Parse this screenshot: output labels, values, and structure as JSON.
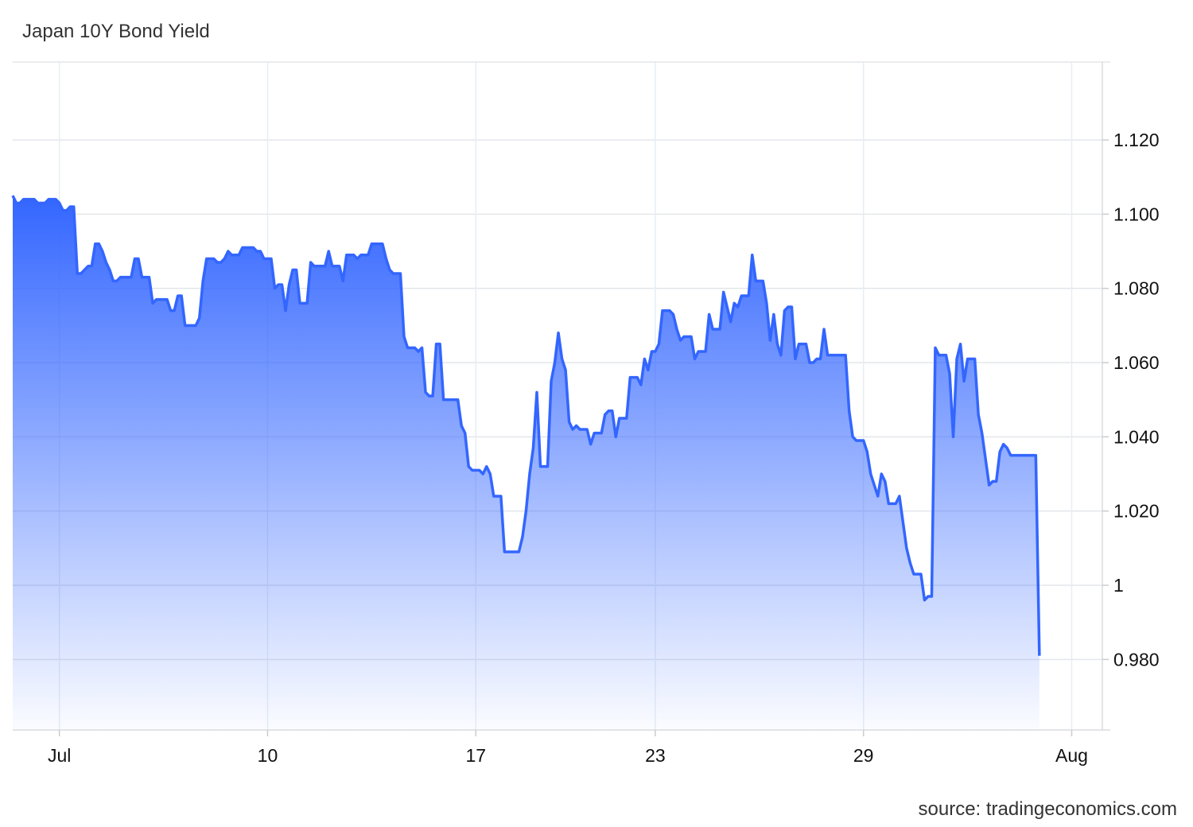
{
  "chart_data": {
    "type": "area",
    "title": "Japan 10Y Bond Yield",
    "source": "source: tradingeconomics.com",
    "line_color": "#3366ff",
    "fill_top_color": "#3366ff",
    "grid": true,
    "ylim": [
      0.961,
      1.141
    ],
    "y_ticks": [
      {
        "value": 1.12,
        "label": "1.120"
      },
      {
        "value": 1.1,
        "label": "1.100"
      },
      {
        "value": 1.08,
        "label": "1.080"
      },
      {
        "value": 1.06,
        "label": "1.060"
      },
      {
        "value": 1.04,
        "label": "1.040"
      },
      {
        "value": 1.02,
        "label": "1.020"
      },
      {
        "value": 1.0,
        "label": "1"
      },
      {
        "value": 0.98,
        "label": "0.980"
      }
    ],
    "x_ticks": [
      {
        "index": 13,
        "label": "Jul"
      },
      {
        "index": 71,
        "label": "10"
      },
      {
        "index": 129,
        "label": "17"
      },
      {
        "index": 179,
        "label": "23"
      },
      {
        "index": 237,
        "label": "29"
      },
      {
        "index": 295,
        "label": "Aug"
      }
    ],
    "x_count": 297,
    "values": [
      1.105,
      1.103,
      1.103,
      1.104,
      1.104,
      1.104,
      1.104,
      1.103,
      1.103,
      1.103,
      1.104,
      1.104,
      1.104,
      1.103,
      1.101,
      1.101,
      1.102,
      1.102,
      1.084,
      1.084,
      1.085,
      1.086,
      1.086,
      1.092,
      1.092,
      1.09,
      1.087,
      1.085,
      1.082,
      1.082,
      1.083,
      1.083,
      1.083,
      1.083,
      1.088,
      1.088,
      1.083,
      1.083,
      1.083,
      1.076,
      1.077,
      1.077,
      1.077,
      1.077,
      1.074,
      1.074,
      1.078,
      1.078,
      1.07,
      1.07,
      1.07,
      1.07,
      1.072,
      1.082,
      1.088,
      1.088,
      1.088,
      1.087,
      1.087,
      1.088,
      1.09,
      1.089,
      1.089,
      1.089,
      1.091,
      1.091,
      1.091,
      1.091,
      1.09,
      1.09,
      1.088,
      1.088,
      1.088,
      1.08,
      1.081,
      1.081,
      1.074,
      1.081,
      1.085,
      1.085,
      1.076,
      1.076,
      1.076,
      1.087,
      1.086,
      1.086,
      1.086,
      1.086,
      1.09,
      1.086,
      1.086,
      1.086,
      1.082,
      1.089,
      1.089,
      1.089,
      1.088,
      1.089,
      1.089,
      1.089,
      1.092,
      1.092,
      1.092,
      1.092,
      1.088,
      1.085,
      1.084,
      1.084,
      1.084,
      1.067,
      1.064,
      1.064,
      1.064,
      1.063,
      1.064,
      1.052,
      1.051,
      1.051,
      1.065,
      1.065,
      1.05,
      1.05,
      1.05,
      1.05,
      1.05,
      1.043,
      1.041,
      1.032,
      1.031,
      1.031,
      1.031,
      1.03,
      1.032,
      1.03,
      1.024,
      1.024,
      1.024,
      1.009,
      1.009,
      1.009,
      1.009,
      1.009,
      1.013,
      1.02,
      1.03,
      1.037,
      1.052,
      1.032,
      1.032,
      1.032,
      1.055,
      1.06,
      1.068,
      1.061,
      1.058,
      1.044,
      1.042,
      1.043,
      1.042,
      1.042,
      1.042,
      1.038,
      1.041,
      1.041,
      1.041,
      1.046,
      1.047,
      1.047,
      1.04,
      1.045,
      1.045,
      1.045,
      1.056,
      1.056,
      1.056,
      1.054,
      1.061,
      1.058,
      1.063,
      1.063,
      1.065,
      1.074,
      1.074,
      1.074,
      1.073,
      1.069,
      1.066,
      1.067,
      1.067,
      1.067,
      1.061,
      1.063,
      1.063,
      1.063,
      1.073,
      1.069,
      1.069,
      1.069,
      1.079,
      1.075,
      1.071,
      1.076,
      1.075,
      1.078,
      1.078,
      1.078,
      1.089,
      1.082,
      1.082,
      1.082,
      1.076,
      1.066,
      1.073,
      1.065,
      1.062,
      1.074,
      1.075,
      1.075,
      1.061,
      1.065,
      1.065,
      1.065,
      1.06,
      1.06,
      1.061,
      1.061,
      1.069,
      1.062,
      1.062,
      1.062,
      1.062,
      1.062,
      1.062,
      1.047,
      1.04,
      1.039,
      1.039,
      1.039,
      1.036,
      1.03,
      1.027,
      1.024,
      1.03,
      1.028,
      1.022,
      1.022,
      1.022,
      1.024,
      1.017,
      1.01,
      1.006,
      1.003,
      1.003,
      1.003,
      0.996,
      0.997,
      0.997,
      1.064,
      1.062,
      1.062,
      1.062,
      1.057,
      1.04,
      1.061,
      1.065,
      1.055,
      1.061,
      1.061,
      1.061,
      1.046,
      1.041,
      1.034,
      1.027,
      1.028,
      1.028,
      1.036,
      1.038,
      1.037,
      1.035,
      1.035,
      1.035,
      1.035,
      1.035,
      1.035,
      1.035,
      1.035,
      0.981
    ]
  }
}
